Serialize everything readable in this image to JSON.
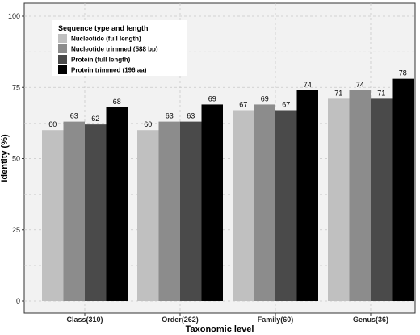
{
  "chart_data": {
    "type": "bar",
    "categories": [
      "Class(310)",
      "Order(262)",
      "Family(60)",
      "Genus(36)"
    ],
    "series": [
      {
        "name": "Nucleotide (full length)",
        "values": [
          60,
          60,
          67,
          71
        ],
        "color": "#c0c0c0"
      },
      {
        "name": "Nucleotide trimmed (588 bp)",
        "values": [
          63,
          63,
          69,
          74
        ],
        "color": "#8c8c8c"
      },
      {
        "name": "Protein (full length)",
        "values": [
          62,
          63,
          67,
          71
        ],
        "color": "#4a4a4a"
      },
      {
        "name": "Protein trimmed (196 aa)",
        "values": [
          68,
          69,
          74,
          78
        ],
        "color": "#000000"
      }
    ],
    "xlabel": "Taxonomic level",
    "ylabel": "Identity (%)",
    "ylim": [
      0,
      100
    ],
    "yticks": [
      0,
      25,
      50,
      75,
      100
    ],
    "legend_title": "Sequence type and length",
    "legend_position": "top-left",
    "grid": true,
    "panel_background": "#f2f2f2",
    "gridline_color": "#c8c8c8"
  }
}
